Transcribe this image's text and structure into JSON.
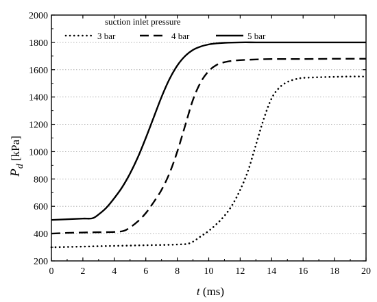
{
  "chart_data": {
    "type": "line",
    "xlabel": {
      "var": "t",
      "unit": " (ms)"
    },
    "ylabel": {
      "var": "P",
      "sub": "d",
      "unit": " [kPa]"
    },
    "xlim": [
      0,
      20
    ],
    "ylim": [
      200,
      2000
    ],
    "xticks": [
      0,
      2,
      4,
      6,
      8,
      10,
      12,
      14,
      16,
      18,
      20
    ],
    "yticks": [
      200,
      400,
      600,
      800,
      1000,
      1200,
      1400,
      1600,
      1800,
      2000
    ],
    "grid": "horizontal-dotted",
    "legend": {
      "title": "suction inlet pressure",
      "placement": "top-left"
    },
    "series": [
      {
        "name": "3 bar",
        "style": "dotted",
        "x": [
          0,
          2,
          4,
          6,
          8,
          8.8,
          9.5,
          10,
          10.5,
          11,
          11.5,
          12,
          12.5,
          13,
          13.5,
          14,
          14.5,
          15,
          15.5,
          16,
          17,
          18,
          19,
          20
        ],
        "y": [
          300,
          305,
          310,
          315,
          320,
          330,
          380,
          420,
          470,
          530,
          610,
          720,
          860,
          1050,
          1240,
          1390,
          1470,
          1510,
          1530,
          1540,
          1545,
          1548,
          1550,
          1550
        ]
      },
      {
        "name": "4 bar",
        "style": "dashed",
        "x": [
          0,
          1,
          2,
          3,
          4,
          4.6,
          5,
          5.5,
          6,
          6.5,
          7,
          7.5,
          8,
          8.5,
          9,
          9.5,
          10,
          10.5,
          11,
          11.5,
          12,
          13,
          14,
          16,
          18,
          20
        ],
        "y": [
          400,
          405,
          408,
          410,
          412,
          420,
          445,
          490,
          550,
          630,
          720,
          840,
          1000,
          1190,
          1380,
          1510,
          1590,
          1635,
          1655,
          1665,
          1670,
          1675,
          1678,
          1678,
          1680,
          1680
        ]
      },
      {
        "name": "5 bar",
        "style": "solid",
        "x": [
          0,
          1,
          2,
          2.6,
          3,
          3.5,
          4,
          4.5,
          5,
          5.5,
          6,
          6.5,
          7,
          7.5,
          8,
          8.5,
          9,
          9.5,
          10,
          10.5,
          11,
          12,
          13,
          14,
          16,
          18,
          20
        ],
        "y": [
          500,
          505,
          510,
          512,
          540,
          590,
          660,
          740,
          840,
          960,
          1100,
          1250,
          1400,
          1530,
          1630,
          1700,
          1745,
          1770,
          1785,
          1793,
          1797,
          1800,
          1800,
          1800,
          1800,
          1800,
          1800
        ]
      }
    ]
  }
}
